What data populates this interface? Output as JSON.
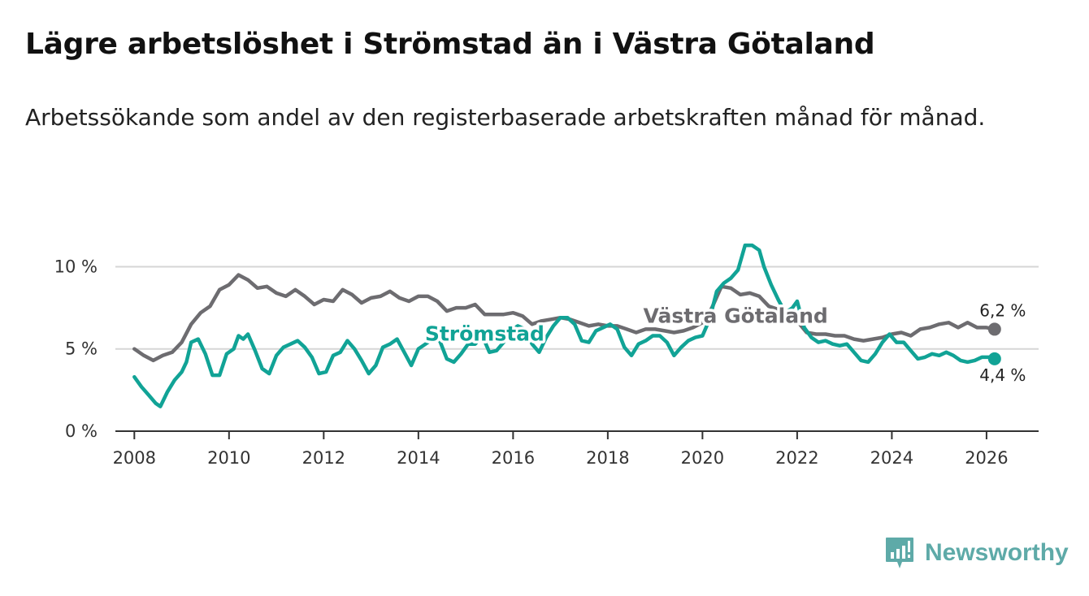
{
  "title": "Lägre arbetslöshet i Strömstad än i Västra Götaland",
  "subtitle": "Arbetssökande som andel av den registerbaserade arbetskraften månad för månad.",
  "brand": {
    "name": "Newsworthy",
    "color": "#5eaaa8",
    "icon": "newsworthy-logo-icon"
  },
  "colors": {
    "stromstad": "#11a396",
    "vastra": "#6d6c70",
    "grid": "#d6d6d6",
    "axis": "#333333"
  },
  "chart_data": {
    "type": "line",
    "title": "Lägre arbetslöshet i Strömstad än i Västra Götaland",
    "xlabel": "",
    "ylabel": "",
    "xlim": [
      2007.6,
      2027.1
    ],
    "ylim": [
      0,
      11.8
    ],
    "y_ticks": [
      {
        "value": 0,
        "label": "0 %"
      },
      {
        "value": 5,
        "label": "5 %"
      },
      {
        "value": 10,
        "label": "10 %"
      }
    ],
    "x_ticks": [
      {
        "value": 2008,
        "label": "2008"
      },
      {
        "value": 2010,
        "label": "2010"
      },
      {
        "value": 2012,
        "label": "2012"
      },
      {
        "value": 2014,
        "label": "2014"
      },
      {
        "value": 2016,
        "label": "2016"
      },
      {
        "value": 2018,
        "label": "2018"
      },
      {
        "value": 2020,
        "label": "2020"
      },
      {
        "value": 2022,
        "label": "2022"
      },
      {
        "value": 2024,
        "label": "2024"
      },
      {
        "value": 2026,
        "label": "2026"
      }
    ],
    "series": [
      {
        "name": "Västra Götaland",
        "key": "vastra",
        "end_label": "6,2 %",
        "points": [
          [
            2008.0,
            5.0
          ],
          [
            2008.2,
            4.6
          ],
          [
            2008.4,
            4.3
          ],
          [
            2008.6,
            4.6
          ],
          [
            2008.8,
            4.8
          ],
          [
            2009.0,
            5.4
          ],
          [
            2009.2,
            6.5
          ],
          [
            2009.4,
            7.2
          ],
          [
            2009.6,
            7.6
          ],
          [
            2009.8,
            8.6
          ],
          [
            2010.0,
            8.9
          ],
          [
            2010.2,
            9.5
          ],
          [
            2010.4,
            9.2
          ],
          [
            2010.6,
            8.7
          ],
          [
            2010.8,
            8.8
          ],
          [
            2011.0,
            8.4
          ],
          [
            2011.2,
            8.2
          ],
          [
            2011.4,
            8.6
          ],
          [
            2011.6,
            8.2
          ],
          [
            2011.8,
            7.7
          ],
          [
            2012.0,
            8.0
          ],
          [
            2012.2,
            7.9
          ],
          [
            2012.4,
            8.6
          ],
          [
            2012.6,
            8.3
          ],
          [
            2012.8,
            7.8
          ],
          [
            2013.0,
            8.1
          ],
          [
            2013.2,
            8.2
          ],
          [
            2013.4,
            8.5
          ],
          [
            2013.6,
            8.1
          ],
          [
            2013.8,
            7.9
          ],
          [
            2014.0,
            8.2
          ],
          [
            2014.2,
            8.2
          ],
          [
            2014.4,
            7.9
          ],
          [
            2014.6,
            7.3
          ],
          [
            2014.8,
            7.5
          ],
          [
            2015.0,
            7.5
          ],
          [
            2015.2,
            7.7
          ],
          [
            2015.4,
            7.1
          ],
          [
            2015.6,
            7.1
          ],
          [
            2015.8,
            7.1
          ],
          [
            2016.0,
            7.2
          ],
          [
            2016.2,
            7.0
          ],
          [
            2016.4,
            6.5
          ],
          [
            2016.6,
            6.7
          ],
          [
            2016.8,
            6.8
          ],
          [
            2017.0,
            6.9
          ],
          [
            2017.2,
            6.8
          ],
          [
            2017.4,
            6.6
          ],
          [
            2017.6,
            6.4
          ],
          [
            2017.8,
            6.5
          ],
          [
            2018.0,
            6.4
          ],
          [
            2018.2,
            6.4
          ],
          [
            2018.4,
            6.2
          ],
          [
            2018.6,
            6.0
          ],
          [
            2018.8,
            6.2
          ],
          [
            2019.0,
            6.2
          ],
          [
            2019.2,
            6.1
          ],
          [
            2019.4,
            6.0
          ],
          [
            2019.6,
            6.1
          ],
          [
            2019.8,
            6.3
          ],
          [
            2020.0,
            6.6
          ],
          [
            2020.2,
            7.5
          ],
          [
            2020.4,
            8.8
          ],
          [
            2020.6,
            8.7
          ],
          [
            2020.8,
            8.3
          ],
          [
            2021.0,
            8.4
          ],
          [
            2021.2,
            8.2
          ],
          [
            2021.4,
            7.6
          ],
          [
            2021.6,
            7.4
          ],
          [
            2021.8,
            7.0
          ],
          [
            2022.0,
            6.7
          ],
          [
            2022.2,
            6.0
          ],
          [
            2022.4,
            5.9
          ],
          [
            2022.6,
            5.9
          ],
          [
            2022.8,
            5.8
          ],
          [
            2023.0,
            5.8
          ],
          [
            2023.2,
            5.6
          ],
          [
            2023.4,
            5.5
          ],
          [
            2023.6,
            5.6
          ],
          [
            2023.8,
            5.7
          ],
          [
            2024.0,
            5.9
          ],
          [
            2024.2,
            6.0
          ],
          [
            2024.4,
            5.8
          ],
          [
            2024.6,
            6.2
          ],
          [
            2024.8,
            6.3
          ],
          [
            2025.0,
            6.5
          ],
          [
            2025.2,
            6.6
          ],
          [
            2025.4,
            6.3
          ],
          [
            2025.6,
            6.6
          ],
          [
            2025.8,
            6.3
          ],
          [
            2026.0,
            6.3
          ],
          [
            2026.17,
            6.2
          ]
        ]
      },
      {
        "name": "Strömstad",
        "key": "stromstad",
        "end_label": "4,4 %",
        "points": [
          [
            2008.0,
            3.3
          ],
          [
            2008.15,
            2.7
          ],
          [
            2008.3,
            2.2
          ],
          [
            2008.45,
            1.7
          ],
          [
            2008.55,
            1.5
          ],
          [
            2008.7,
            2.4
          ],
          [
            2008.85,
            3.1
          ],
          [
            2009.0,
            3.6
          ],
          [
            2009.1,
            4.2
          ],
          [
            2009.2,
            5.4
          ],
          [
            2009.35,
            5.6
          ],
          [
            2009.5,
            4.7
          ],
          [
            2009.65,
            3.4
          ],
          [
            2009.8,
            3.4
          ],
          [
            2009.95,
            4.7
          ],
          [
            2010.1,
            5.0
          ],
          [
            2010.2,
            5.8
          ],
          [
            2010.3,
            5.6
          ],
          [
            2010.4,
            5.9
          ],
          [
            2010.55,
            4.9
          ],
          [
            2010.7,
            3.8
          ],
          [
            2010.85,
            3.5
          ],
          [
            2011.0,
            4.6
          ],
          [
            2011.15,
            5.1
          ],
          [
            2011.3,
            5.3
          ],
          [
            2011.45,
            5.5
          ],
          [
            2011.6,
            5.1
          ],
          [
            2011.75,
            4.5
          ],
          [
            2011.9,
            3.5
          ],
          [
            2012.05,
            3.6
          ],
          [
            2012.2,
            4.6
          ],
          [
            2012.35,
            4.8
          ],
          [
            2012.5,
            5.5
          ],
          [
            2012.65,
            5.0
          ],
          [
            2012.8,
            4.3
          ],
          [
            2012.95,
            3.5
          ],
          [
            2013.1,
            4.0
          ],
          [
            2013.25,
            5.1
          ],
          [
            2013.4,
            5.3
          ],
          [
            2013.55,
            5.6
          ],
          [
            2013.7,
            4.8
          ],
          [
            2013.85,
            4.0
          ],
          [
            2014.0,
            5.0
          ],
          [
            2014.15,
            5.3
          ],
          [
            2014.3,
            5.6
          ],
          [
            2014.45,
            5.5
          ],
          [
            2014.6,
            4.4
          ],
          [
            2014.75,
            4.2
          ],
          [
            2014.9,
            4.7
          ],
          [
            2015.05,
            5.3
          ],
          [
            2015.2,
            5.3
          ],
          [
            2015.35,
            5.8
          ],
          [
            2015.5,
            4.8
          ],
          [
            2015.65,
            4.9
          ],
          [
            2015.8,
            5.4
          ],
          [
            2015.95,
            6.1
          ],
          [
            2016.1,
            6.4
          ],
          [
            2016.25,
            6.2
          ],
          [
            2016.4,
            5.3
          ],
          [
            2016.55,
            4.8
          ],
          [
            2016.7,
            5.7
          ],
          [
            2016.85,
            6.4
          ],
          [
            2017.0,
            6.9
          ],
          [
            2017.15,
            6.9
          ],
          [
            2017.3,
            6.5
          ],
          [
            2017.45,
            5.5
          ],
          [
            2017.6,
            5.4
          ],
          [
            2017.75,
            6.1
          ],
          [
            2017.9,
            6.3
          ],
          [
            2018.05,
            6.5
          ],
          [
            2018.2,
            6.2
          ],
          [
            2018.35,
            5.1
          ],
          [
            2018.5,
            4.6
          ],
          [
            2018.65,
            5.3
          ],
          [
            2018.8,
            5.5
          ],
          [
            2018.95,
            5.8
          ],
          [
            2019.1,
            5.8
          ],
          [
            2019.25,
            5.4
          ],
          [
            2019.4,
            4.6
          ],
          [
            2019.55,
            5.1
          ],
          [
            2019.7,
            5.5
          ],
          [
            2019.85,
            5.7
          ],
          [
            2020.0,
            5.8
          ],
          [
            2020.15,
            6.8
          ],
          [
            2020.3,
            8.5
          ],
          [
            2020.45,
            9.0
          ],
          [
            2020.6,
            9.3
          ],
          [
            2020.75,
            9.8
          ],
          [
            2020.9,
            11.3
          ],
          [
            2021.05,
            11.3
          ],
          [
            2021.2,
            11.0
          ],
          [
            2021.3,
            10.0
          ],
          [
            2021.45,
            8.9
          ],
          [
            2021.6,
            8.0
          ],
          [
            2021.75,
            7.2
          ],
          [
            2021.9,
            7.5
          ],
          [
            2022.0,
            7.9
          ],
          [
            2022.15,
            6.3
          ],
          [
            2022.3,
            5.7
          ],
          [
            2022.45,
            5.4
          ],
          [
            2022.6,
            5.5
          ],
          [
            2022.75,
            5.3
          ],
          [
            2022.9,
            5.2
          ],
          [
            2023.05,
            5.3
          ],
          [
            2023.2,
            4.8
          ],
          [
            2023.35,
            4.3
          ],
          [
            2023.5,
            4.2
          ],
          [
            2023.65,
            4.7
          ],
          [
            2023.8,
            5.4
          ],
          [
            2023.95,
            5.9
          ],
          [
            2024.1,
            5.4
          ],
          [
            2024.25,
            5.4
          ],
          [
            2024.4,
            4.9
          ],
          [
            2024.55,
            4.4
          ],
          [
            2024.7,
            4.5
          ],
          [
            2024.85,
            4.7
          ],
          [
            2025.0,
            4.6
          ],
          [
            2025.15,
            4.8
          ],
          [
            2025.3,
            4.6
          ],
          [
            2025.45,
            4.3
          ],
          [
            2025.6,
            4.2
          ],
          [
            2025.75,
            4.3
          ],
          [
            2025.9,
            4.5
          ],
          [
            2026.05,
            4.5
          ],
          [
            2026.17,
            4.4
          ]
        ]
      }
    ],
    "annotations": [
      {
        "series": "stromstad",
        "text": "Strömstad",
        "x": 2015.4,
        "y": 5.5
      },
      {
        "series": "vastra",
        "text": "Västra Götaland",
        "x": 2020.7,
        "y": 6.6
      }
    ]
  }
}
